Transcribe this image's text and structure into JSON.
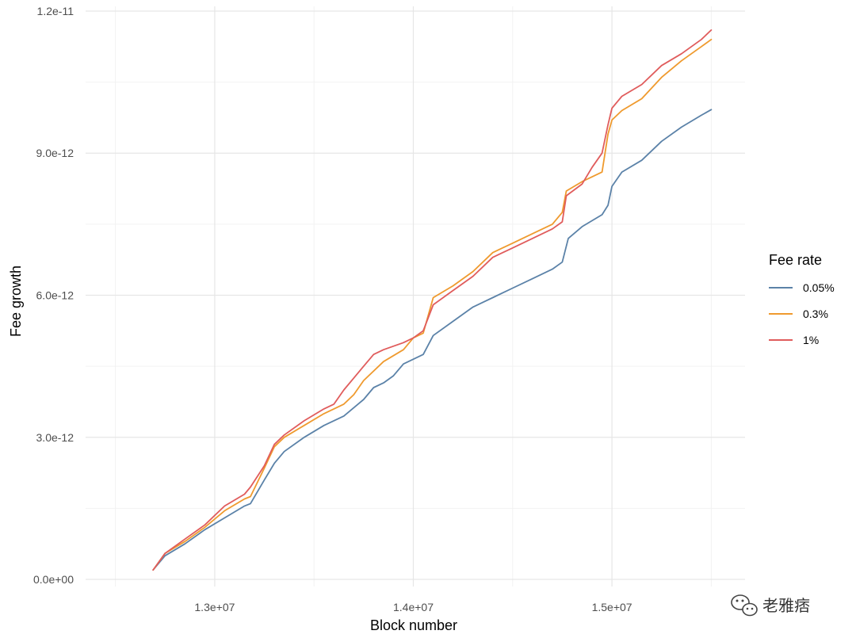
{
  "chart_data": {
    "type": "line",
    "xlabel": "Block number",
    "ylabel": "Fee growth",
    "xlim": [
      12350000,
      15670000
    ],
    "ylim": [
      -1.5e-13,
      1.21e-11
    ],
    "x_ticks": [
      13000000,
      14000000,
      15000000
    ],
    "x_tick_labels": [
      "1.3e+07",
      "1.4e+07",
      "1.5e+07"
    ],
    "y_ticks": [
      0,
      3e-12,
      6e-12,
      9e-12,
      1.2e-11
    ],
    "y_tick_labels": [
      "0.0e+00",
      "3.0e-12",
      "6.0e-12",
      "9.0e-12",
      "1.2e-11"
    ],
    "grid": true,
    "legend": {
      "title": "Fee rate",
      "position": "right"
    },
    "series": [
      {
        "name": "0.05%",
        "color": "#5b82a8",
        "x": [
          12690000,
          12750000,
          12850000,
          12950000,
          13050000,
          13150000,
          13180000,
          13250000,
          13300000,
          13350000,
          13450000,
          13550000,
          13650000,
          13750000,
          13800000,
          13850000,
          13900000,
          13950000,
          14000000,
          14050000,
          14100000,
          14200000,
          14300000,
          14400000,
          14500000,
          14600000,
          14700000,
          14750000,
          14780000,
          14850000,
          14950000,
          14980000,
          15000000,
          15050000,
          15150000,
          15250000,
          15350000,
          15450000,
          15500000
        ],
        "y": [
          2e-13,
          5e-13,
          7.5e-13,
          1.05e-12,
          1.3e-12,
          1.55e-12,
          1.6e-12,
          2.1e-12,
          2.45e-12,
          2.7e-12,
          3e-12,
          3.25e-12,
          3.45e-12,
          3.8e-12,
          4.05e-12,
          4.15e-12,
          4.3e-12,
          4.55e-12,
          4.65e-12,
          4.75e-12,
          5.15e-12,
          5.45e-12,
          5.75e-12,
          5.95e-12,
          6.15e-12,
          6.35e-12,
          6.55e-12,
          6.7e-12,
          7.2e-12,
          7.45e-12,
          7.7e-12,
          7.9e-12,
          8.3e-12,
          8.6e-12,
          8.85e-12,
          9.25e-12,
          9.55e-12,
          9.8e-12,
          9.92e-12
        ]
      },
      {
        "name": "0.3%",
        "color": "#ef9a2e",
        "x": [
          12690000,
          12750000,
          12850000,
          12950000,
          13050000,
          13150000,
          13180000,
          13250000,
          13300000,
          13350000,
          13450000,
          13550000,
          13650000,
          13700000,
          13750000,
          13850000,
          13950000,
          14000000,
          14050000,
          14100000,
          14200000,
          14300000,
          14400000,
          14500000,
          14600000,
          14700000,
          14750000,
          14770000,
          14850000,
          14950000,
          14980000,
          15000000,
          15050000,
          15150000,
          15250000,
          15350000,
          15450000,
          15500000
        ],
        "y": [
          2e-13,
          5.5e-13,
          8e-13,
          1.1e-12,
          1.45e-12,
          1.7e-12,
          1.75e-12,
          2.35e-12,
          2.8e-12,
          3e-12,
          3.25e-12,
          3.5e-12,
          3.7e-12,
          3.9e-12,
          4.2e-12,
          4.6e-12,
          4.85e-12,
          5.1e-12,
          5.2e-12,
          5.95e-12,
          6.2e-12,
          6.5e-12,
          6.9e-12,
          7.1e-12,
          7.3e-12,
          7.5e-12,
          7.75e-12,
          8.2e-12,
          8.4e-12,
          8.6e-12,
          9.4e-12,
          9.7e-12,
          9.9e-12,
          1.015e-11,
          1.06e-11,
          1.095e-11,
          1.125e-11,
          1.14e-11
        ]
      },
      {
        "name": "1%",
        "color": "#e05c5c",
        "x": [
          12690000,
          12750000,
          12850000,
          12950000,
          13050000,
          13150000,
          13180000,
          13250000,
          13300000,
          13350000,
          13450000,
          13550000,
          13600000,
          13650000,
          13700000,
          13750000,
          13800000,
          13850000,
          13950000,
          14000000,
          14050000,
          14100000,
          14200000,
          14300000,
          14400000,
          14500000,
          14600000,
          14700000,
          14750000,
          14770000,
          14850000,
          14900000,
          14950000,
          14980000,
          15000000,
          15050000,
          15150000,
          15250000,
          15350000,
          15450000,
          15500000
        ],
        "y": [
          2e-13,
          5.5e-13,
          8.5e-13,
          1.15e-12,
          1.55e-12,
          1.8e-12,
          1.95e-12,
          2.4e-12,
          2.85e-12,
          3.05e-12,
          3.35e-12,
          3.6e-12,
          3.7e-12,
          4e-12,
          4.25e-12,
          4.5e-12,
          4.75e-12,
          4.85e-12,
          5e-12,
          5.1e-12,
          5.25e-12,
          5.8e-12,
          6.1e-12,
          6.4e-12,
          6.8e-12,
          7e-12,
          7.2e-12,
          7.4e-12,
          7.55e-12,
          8.1e-12,
          8.35e-12,
          8.7e-12,
          9e-12,
          9.6e-12,
          9.95e-12,
          1.02e-11,
          1.045e-11,
          1.085e-11,
          1.11e-11,
          1.14e-11,
          1.16e-11
        ]
      }
    ]
  },
  "watermark": {
    "text": "老雅痞",
    "icon": "wechat-icon"
  }
}
